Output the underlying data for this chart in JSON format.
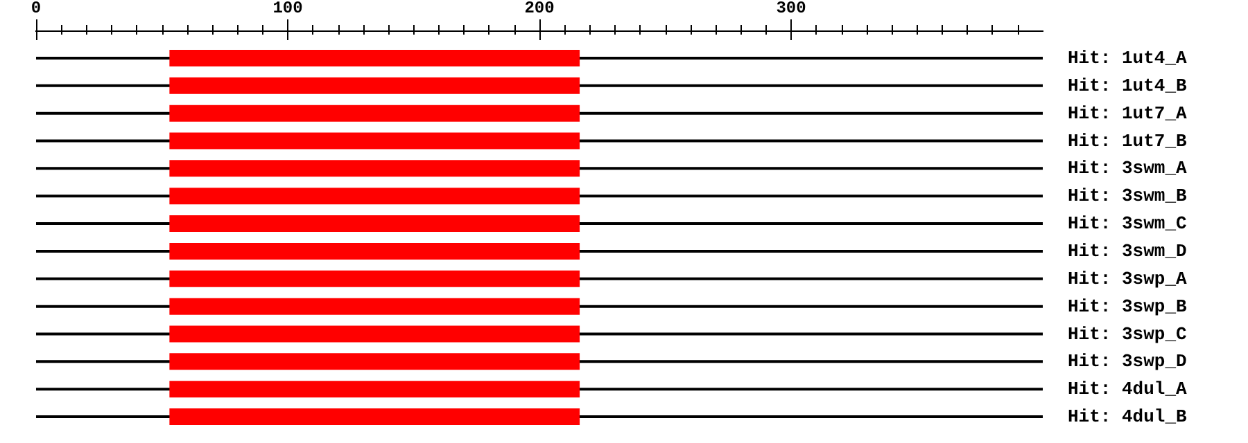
{
  "chart_data": {
    "type": "bar",
    "orientation": "horizontal",
    "categories": [
      "Hit: 1ut4_A",
      "Hit: 1ut4_B",
      "Hit: 1ut7_A",
      "Hit: 1ut7_B",
      "Hit: 3swm_A",
      "Hit: 3swm_B",
      "Hit: 3swm_C",
      "Hit: 3swm_D",
      "Hit: 3swp_A",
      "Hit: 3swp_B",
      "Hit: 3swp_C",
      "Hit: 3swp_D",
      "Hit: 4dul_A",
      "Hit: 4dul_B"
    ],
    "series": [
      {
        "color": "#000000",
        "values": [
          400,
          400,
          400,
          400,
          400,
          400,
          400,
          400,
          400,
          400,
          400,
          400,
          400,
          400
        ]
      },
      {
        "color": "#ff0000",
        "base": [
          53,
          53,
          53,
          53,
          53,
          53,
          53,
          53,
          53,
          53,
          53,
          53,
          53,
          53
        ],
        "values": [
          163,
          163,
          163,
          163,
          163,
          163,
          163,
          163,
          163,
          163,
          163,
          163,
          163,
          163
        ]
      }
    ],
    "xlim": [
      0,
      400
    ],
    "xticks": [
      0,
      {
        "value": 10,
        "label": null
      },
      {
        "value": 20,
        "label": null
      },
      {
        "value": 30,
        "label": null
      },
      {
        "value": 40,
        "label": null
      },
      {
        "value": 50,
        "label": null
      },
      {
        "value": 60,
        "label": null
      },
      {
        "value": 70,
        "label": null
      },
      {
        "value": 80,
        "label": null
      },
      {
        "value": 90,
        "label": null
      },
      100,
      {
        "value": 110,
        "label": null
      },
      {
        "value": 120,
        "label": null
      },
      {
        "value": 130,
        "label": null
      },
      {
        "value": 140,
        "label": null
      },
      {
        "value": 150,
        "label": null
      },
      {
        "value": 160,
        "label": null
      },
      {
        "value": 170,
        "label": null
      },
      {
        "value": 180,
        "label": null
      },
      {
        "value": 190,
        "label": null
      },
      200,
      {
        "value": 210,
        "label": null
      },
      {
        "value": 220,
        "label": null
      },
      {
        "value": 230,
        "label": null
      },
      {
        "value": 240,
        "label": null
      },
      {
        "value": 250,
        "label": null
      },
      {
        "value": 260,
        "label": null
      },
      {
        "value": 270,
        "label": null
      },
      {
        "value": 280,
        "label": null
      },
      {
        "value": 290,
        "label": null
      },
      300,
      {
        "value": 310,
        "label": null
      },
      {
        "value": 320,
        "label": null
      },
      {
        "value": 330,
        "label": null
      },
      {
        "value": 340,
        "label": null
      },
      {
        "value": 350,
        "label": null
      },
      {
        "value": 360,
        "label": null
      },
      {
        "value": 370,
        "label": null
      },
      {
        "value": 380,
        "label": null
      },
      {
        "value": 390,
        "label": null
      }
    ],
    "grid": false
  }
}
